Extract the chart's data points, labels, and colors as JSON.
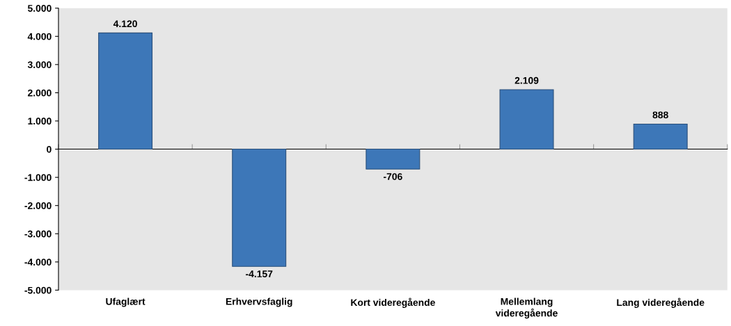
{
  "chart_data": {
    "type": "bar",
    "categories": [
      "Ufaglært",
      "Erhvervsfaglig",
      "Kort videregående",
      "Mellemlang\nvideregående",
      "Lang videregående"
    ],
    "values": [
      4120,
      -4157,
      -706,
      2109,
      888
    ],
    "value_labels": [
      "4.120",
      "-4.157",
      "-706",
      "2.109",
      "888"
    ],
    "color": "#3d77b8",
    "ylim": [
      -5000,
      5000
    ],
    "yticks": [
      {
        "value": -5000,
        "label": "-5.000"
      },
      {
        "value": -4000,
        "label": "-4.000"
      },
      {
        "value": -3000,
        "label": "-3.000"
      },
      {
        "value": -2000,
        "label": "-2.000"
      },
      {
        "value": -1000,
        "label": "-1.000"
      },
      0,
      {
        "value": 1000,
        "label": "1.000"
      },
      {
        "value": 2000,
        "label": "2.000"
      },
      {
        "value": 3000,
        "label": "3.000"
      },
      {
        "value": 4000,
        "label": "4.000"
      },
      {
        "value": 5000,
        "label": "5.000"
      }
    ]
  }
}
